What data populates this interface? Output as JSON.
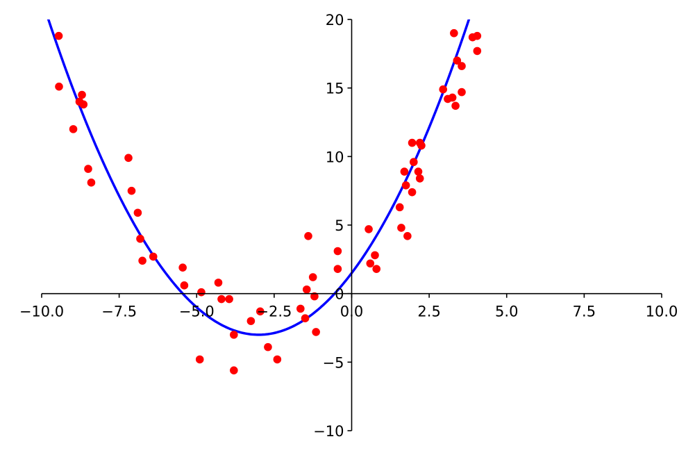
{
  "chart_data": {
    "type": "scatter",
    "title": "",
    "xlabel": "",
    "ylabel": "",
    "xlim": [
      -10,
      10
    ],
    "ylim": [
      -10,
      20
    ],
    "grid": false,
    "spines": "centered",
    "xticks": [
      -10,
      -7.5,
      -5,
      -2.5,
      0,
      2.5,
      5,
      7.5,
      10
    ],
    "xtick_labels": [
      "−10.0",
      "−7.5",
      "−5.0",
      "−2.5",
      "0.0",
      "2.5",
      "5.0",
      "7.5",
      "10.0"
    ],
    "yticks": [
      -10,
      -5,
      0,
      5,
      10,
      15,
      20
    ],
    "ytick_labels": [
      "−10",
      "−5",
      "0",
      "5",
      "10",
      "15",
      "20"
    ],
    "series": [
      {
        "type": "line",
        "color": "#0000ff",
        "function": {
          "a": 0.5,
          "b": 3,
          "c": 1.5
        },
        "x_range": [
          -10,
          4.5
        ]
      },
      {
        "type": "scatter",
        "color": "#ff0000",
        "points": [
          [
            -9.45,
            18.8
          ],
          [
            -9.44,
            15.1
          ],
          [
            -8.98,
            12.0
          ],
          [
            -8.78,
            14.0
          ],
          [
            -8.7,
            14.5
          ],
          [
            -8.65,
            13.8
          ],
          [
            -8.5,
            9.1
          ],
          [
            -8.4,
            8.1
          ],
          [
            -7.2,
            9.9
          ],
          [
            -7.1,
            7.5
          ],
          [
            -6.9,
            5.9
          ],
          [
            -6.82,
            4.0
          ],
          [
            -6.75,
            2.4
          ],
          [
            -6.4,
            2.7
          ],
          [
            -5.45,
            1.9
          ],
          [
            -5.4,
            0.6
          ],
          [
            -4.9,
            -4.8
          ],
          [
            -4.85,
            0.1
          ],
          [
            -4.3,
            0.8
          ],
          [
            -4.2,
            -0.4
          ],
          [
            -3.95,
            -0.4
          ],
          [
            -3.8,
            -3.0
          ],
          [
            -3.8,
            -5.6
          ],
          [
            -3.25,
            -2.0
          ],
          [
            -2.95,
            -1.3
          ],
          [
            -2.7,
            -3.9
          ],
          [
            -2.4,
            -4.8
          ],
          [
            -1.65,
            -1.1
          ],
          [
            -1.5,
            -1.8
          ],
          [
            -1.45,
            0.3
          ],
          [
            -1.4,
            4.2
          ],
          [
            -1.25,
            1.2
          ],
          [
            -1.2,
            -0.2
          ],
          [
            -1.15,
            -2.8
          ],
          [
            -0.45,
            3.1
          ],
          [
            -0.45,
            1.8
          ],
          [
            0.55,
            4.7
          ],
          [
            0.6,
            2.2
          ],
          [
            0.75,
            2.8
          ],
          [
            0.8,
            1.8
          ],
          [
            1.55,
            6.3
          ],
          [
            1.6,
            4.8
          ],
          [
            1.7,
            8.9
          ],
          [
            1.75,
            7.9
          ],
          [
            1.8,
            4.2
          ],
          [
            1.95,
            7.4
          ],
          [
            1.95,
            11.0
          ],
          [
            2.0,
            9.6
          ],
          [
            2.15,
            8.9
          ],
          [
            2.2,
            8.4
          ],
          [
            2.2,
            11.0
          ],
          [
            2.25,
            10.8
          ],
          [
            2.95,
            14.9
          ],
          [
            3.1,
            14.2
          ],
          [
            3.25,
            14.3
          ],
          [
            3.3,
            19.0
          ],
          [
            3.35,
            13.7
          ],
          [
            3.4,
            17.0
          ],
          [
            3.55,
            16.6
          ],
          [
            3.55,
            14.7
          ],
          [
            3.9,
            18.7
          ],
          [
            4.05,
            18.8
          ],
          [
            4.05,
            17.7
          ]
        ]
      }
    ]
  }
}
